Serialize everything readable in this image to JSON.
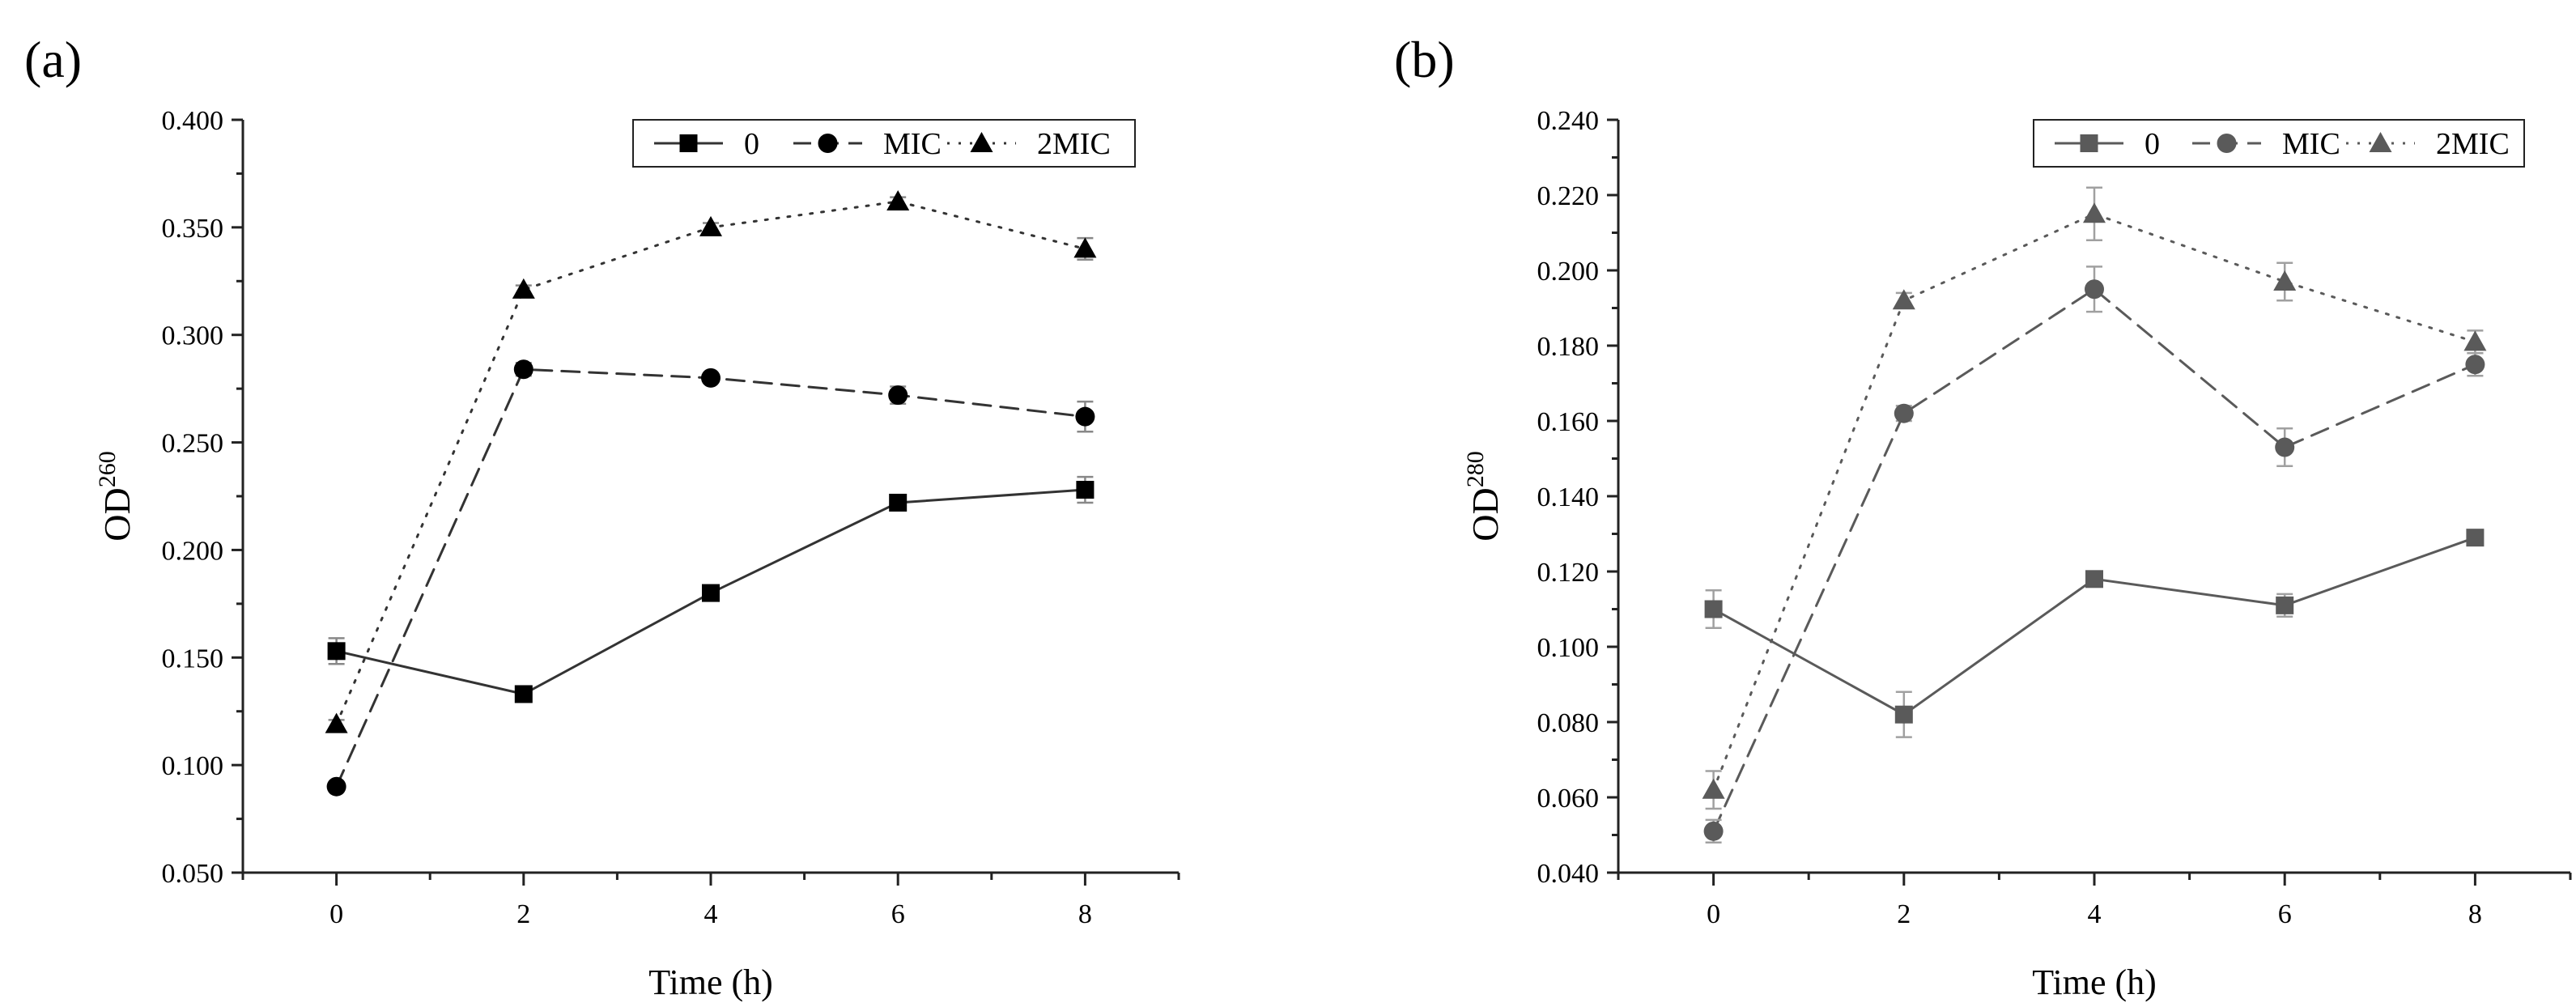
{
  "figure_title": "Two-panel line chart of OD260 and OD280 versus time",
  "chart_data": [
    {
      "type": "line",
      "panel_label": "(a)",
      "xlabel": "Time (h)",
      "ylabel_main": "OD",
      "ylabel_sup": "260",
      "x": [
        0,
        2,
        4,
        6,
        8
      ],
      "xlim": [
        -1,
        9
      ],
      "ylim": [
        0.05,
        0.4
      ],
      "xticks": [
        "0",
        "2",
        "4",
        "6",
        "8"
      ],
      "yticks": [
        "0.050",
        "0.100",
        "0.150",
        "0.200",
        "0.250",
        "0.300",
        "0.350",
        "0.400"
      ],
      "ytick_values": [
        0.05,
        0.1,
        0.15,
        0.2,
        0.25,
        0.3,
        0.35,
        0.4
      ],
      "legend_position": "top-right",
      "mark_color": "#000000",
      "line_color": "#333333",
      "errbar_color": "#888888",
      "series": [
        {
          "name": "0",
          "marker": "square",
          "dash": "solid",
          "values": [
            0.153,
            0.133,
            0.18,
            0.222,
            0.228
          ],
          "errors": [
            0.006,
            0.002,
            0.002,
            0.002,
            0.006
          ]
        },
        {
          "name": "MIC",
          "marker": "circle",
          "dash": "dashed",
          "values": [
            0.09,
            0.284,
            0.28,
            0.272,
            0.262
          ],
          "errors": [
            0.002,
            0.003,
            0.002,
            0.004,
            0.007
          ]
        },
        {
          "name": "2MIC",
          "marker": "triangle",
          "dash": "dotted",
          "values": [
            0.119,
            0.321,
            0.35,
            0.362,
            0.34
          ],
          "errors": [
            0.002,
            0.002,
            0.002,
            0.002,
            0.005
          ]
        }
      ]
    },
    {
      "type": "line",
      "panel_label": "(b)",
      "xlabel": "Time (h)",
      "ylabel_main": "OD",
      "ylabel_sup": "280",
      "x": [
        0,
        2,
        4,
        6,
        8
      ],
      "xlim": [
        -1,
        9
      ],
      "ylim": [
        0.04,
        0.24
      ],
      "xticks": [
        "0",
        "2",
        "4",
        "6",
        "8"
      ],
      "yticks": [
        "0.040",
        "0.060",
        "0.080",
        "0.100",
        "0.120",
        "0.140",
        "0.160",
        "0.180",
        "0.200",
        "0.220",
        "0.240"
      ],
      "ytick_values": [
        0.04,
        0.06,
        0.08,
        0.1,
        0.12,
        0.14,
        0.16,
        0.18,
        0.2,
        0.22,
        0.24
      ],
      "legend_position": "top-right",
      "mark_color": "#5a5a5a",
      "line_color": "#5a5a5a",
      "errbar_color": "#a0a0a0",
      "series": [
        {
          "name": "0",
          "marker": "square",
          "dash": "solid",
          "values": [
            0.11,
            0.082,
            0.118,
            0.111,
            0.129
          ],
          "errors": [
            0.005,
            0.006,
            0.002,
            0.003,
            0.002
          ]
        },
        {
          "name": "MIC",
          "marker": "circle",
          "dash": "dashed",
          "values": [
            0.051,
            0.162,
            0.195,
            0.153,
            0.175
          ],
          "errors": [
            0.003,
            0.002,
            0.006,
            0.005,
            0.003
          ]
        },
        {
          "name": "2MIC",
          "marker": "triangle",
          "dash": "dotted",
          "values": [
            0.062,
            0.192,
            0.215,
            0.197,
            0.181
          ],
          "errors": [
            0.005,
            0.002,
            0.007,
            0.005,
            0.003
          ]
        }
      ]
    }
  ]
}
